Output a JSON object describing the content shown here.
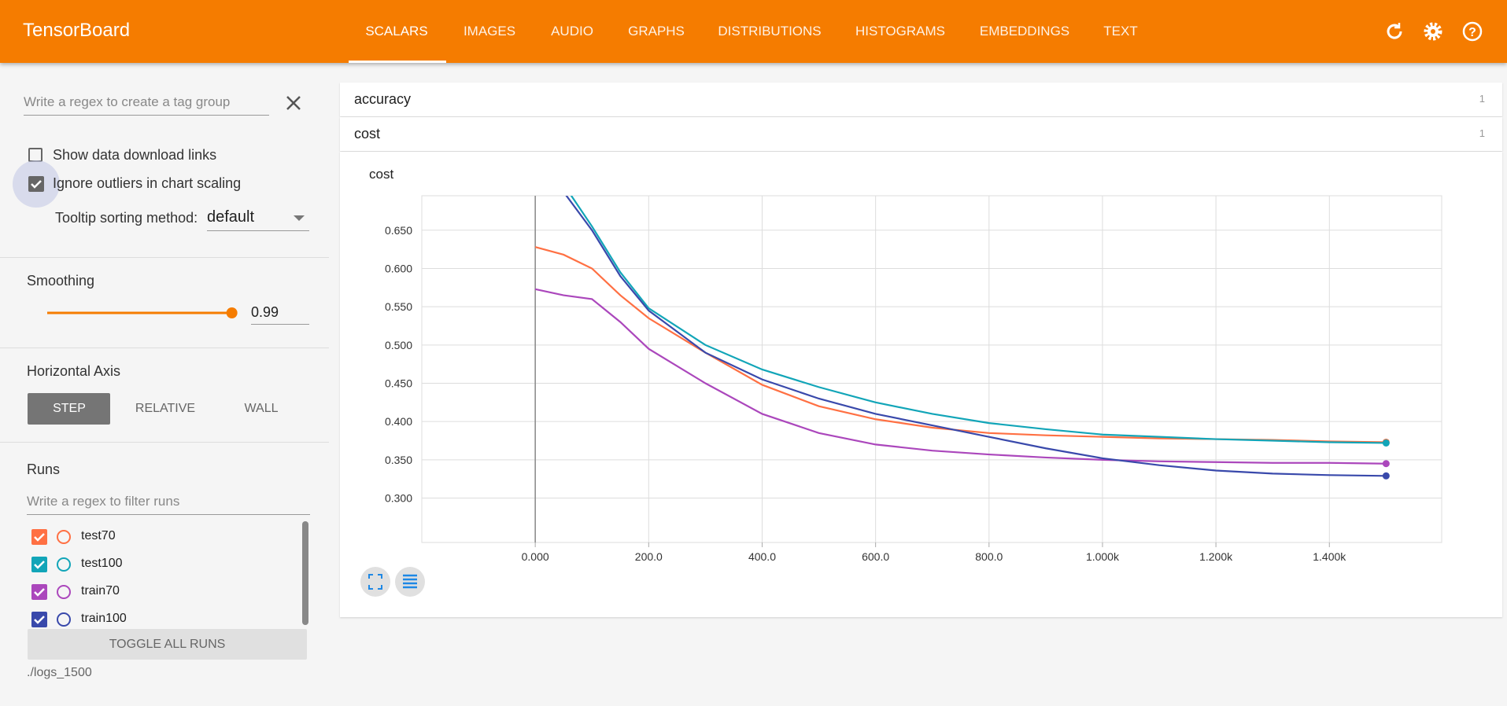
{
  "header": {
    "title": "TensorBoard",
    "tabs": [
      "SCALARS",
      "IMAGES",
      "AUDIO",
      "GRAPHS",
      "DISTRIBUTIONS",
      "HISTOGRAMS",
      "EMBEDDINGS",
      "TEXT"
    ]
  },
  "sidebar": {
    "tag_filter_placeholder": "Write a regex to create a tag group",
    "show_download_links": "Show data download links",
    "ignore_outliers": "Ignore outliers in chart scaling",
    "tooltip_label": "Tooltip sorting method:",
    "tooltip_value": "default",
    "smoothing_label": "Smoothing",
    "smoothing_value": 0.99,
    "horizontal_axis_label": "Horizontal Axis",
    "axis_options": [
      "STEP",
      "RELATIVE",
      "WALL"
    ],
    "runs_label": "Runs",
    "runs_filter_placeholder": "Write a regex to filter runs",
    "toggle_all": "TOGGLE ALL RUNS",
    "logdir": "./logs_1500"
  },
  "tag_groups": [
    {
      "name": "accuracy",
      "count": 1
    },
    {
      "name": "cost",
      "count": 1
    }
  ],
  "chart_data": {
    "type": "line",
    "title": "cost",
    "x": [
      0,
      50,
      100,
      150,
      200,
      300,
      400,
      500,
      600,
      700,
      800,
      900,
      1000,
      1100,
      1200,
      1300,
      1400,
      1500
    ],
    "series": [
      {
        "name": "test70",
        "color": "#ff7043",
        "values": [
          0.628,
          0.618,
          0.6,
          0.565,
          0.535,
          0.49,
          0.448,
          0.42,
          0.403,
          0.392,
          0.385,
          0.382,
          0.38,
          0.378,
          0.377,
          0.376,
          0.374,
          0.373
        ]
      },
      {
        "name": "test100",
        "color": "#12a5b8",
        "values": [
          0.74,
          0.71,
          0.655,
          0.595,
          0.548,
          0.5,
          0.468,
          0.445,
          0.425,
          0.41,
          0.398,
          0.39,
          0.383,
          0.38,
          0.377,
          0.375,
          0.373,
          0.372
        ]
      },
      {
        "name": "train70",
        "color": "#ab47bc",
        "values": [
          0.573,
          0.565,
          0.56,
          0.53,
          0.495,
          0.45,
          0.41,
          0.385,
          0.37,
          0.362,
          0.357,
          0.353,
          0.35,
          0.348,
          0.347,
          0.346,
          0.346,
          0.345
        ]
      },
      {
        "name": "train100",
        "color": "#3949ab",
        "values": [
          0.74,
          0.7,
          0.65,
          0.59,
          0.545,
          0.49,
          0.455,
          0.43,
          0.41,
          0.395,
          0.38,
          0.365,
          0.352,
          0.343,
          0.336,
          0.332,
          0.33,
          0.329
        ]
      }
    ],
    "xlim": [
      -200,
      1598
    ],
    "ylim": [
      0.242,
      0.695
    ],
    "xticks": [
      {
        "value": 0,
        "label": "0.000"
      },
      {
        "value": 200,
        "label": "200.0"
      },
      {
        "value": 400,
        "label": "400.0"
      },
      {
        "value": 600,
        "label": "600.0"
      },
      {
        "value": 800,
        "label": "800.0"
      },
      {
        "value": 1000,
        "label": "1.000k"
      },
      {
        "value": 1200,
        "label": "1.200k"
      },
      {
        "value": 1400,
        "label": "1.400k"
      }
    ],
    "yticks": [
      {
        "value": 0.3,
        "label": "0.300"
      },
      {
        "value": 0.35,
        "label": "0.350"
      },
      {
        "value": 0.4,
        "label": "0.400"
      },
      {
        "value": 0.45,
        "label": "0.450"
      },
      {
        "value": 0.5,
        "label": "0.500"
      },
      {
        "value": 0.55,
        "label": "0.550"
      },
      {
        "value": 0.6,
        "label": "0.600"
      },
      {
        "value": 0.65,
        "label": "0.650"
      }
    ],
    "grid": true
  }
}
